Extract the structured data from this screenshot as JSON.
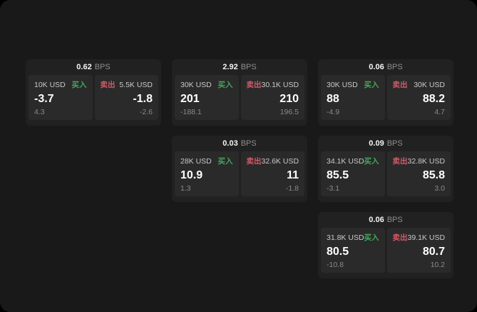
{
  "labels": {
    "bps_unit": "BPS",
    "buy": "买入",
    "sell": "卖出"
  },
  "colors": {
    "buy": "#45a55d",
    "sell": "#d25a68",
    "window_bg": "#191919",
    "card_bg": "#212121",
    "panel_bg": "#2a2a2a"
  },
  "cards": [
    {
      "bps": "0.62",
      "buy": {
        "amount": "10K USD",
        "price": "-3.7",
        "delta": "4.3"
      },
      "sell": {
        "amount": "5.5K USD",
        "price": "-1.8",
        "delta": "-2.6"
      }
    },
    {
      "bps": "2.92",
      "buy": {
        "amount": "30K USD",
        "price": "201",
        "delta": "-188.1"
      },
      "sell": {
        "amount": "30.1K USD",
        "price": "210",
        "delta": "196.5"
      }
    },
    {
      "bps": "0.06",
      "buy": {
        "amount": "30K USD",
        "price": "88",
        "delta": "-4.9"
      },
      "sell": {
        "amount": "30K USD",
        "price": "88.2",
        "delta": "4.7"
      }
    },
    {
      "bps": "0.03",
      "buy": {
        "amount": "28K USD",
        "price": "10.9",
        "delta": "1.3"
      },
      "sell": {
        "amount": "32.6K USD",
        "price": "11",
        "delta": "-1.8"
      }
    },
    {
      "bps": "0.09",
      "buy": {
        "amount": "34.1K USD",
        "price": "85.5",
        "delta": "-3.1"
      },
      "sell": {
        "amount": "32.8K USD",
        "price": "85.8",
        "delta": "3.0"
      }
    },
    {
      "bps": "0.06",
      "buy": {
        "amount": "31.8K USD",
        "price": "80.5",
        "delta": "-10.8"
      },
      "sell": {
        "amount": "39.1K USD",
        "price": "80.7",
        "delta": "10.2"
      }
    }
  ]
}
